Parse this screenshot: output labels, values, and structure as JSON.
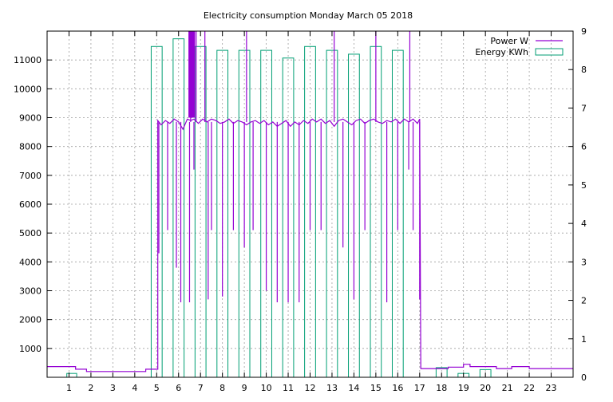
{
  "chart_data": {
    "type": "bar",
    "title": "Electricity consumption Monday March 05 2018",
    "grid": true,
    "legend_position": "top-right",
    "x_axis": {
      "range": [
        0,
        24
      ],
      "ticks": [
        1,
        2,
        3,
        4,
        5,
        6,
        7,
        8,
        9,
        10,
        11,
        12,
        13,
        14,
        15,
        16,
        17,
        18,
        19,
        20,
        21,
        22,
        23
      ]
    },
    "y_left": {
      "range": [
        0,
        12000
      ],
      "ticks": [
        1000,
        2000,
        3000,
        4000,
        5000,
        6000,
        7000,
        8000,
        9000,
        10000,
        11000
      ]
    },
    "y_right": {
      "range": [
        0,
        9
      ],
      "ticks": [
        0,
        1,
        2,
        3,
        4,
        5,
        6,
        7,
        8,
        9
      ]
    },
    "series": [
      {
        "name": "Energy KWh",
        "type": "bar",
        "axis": "right",
        "color": "#009e73",
        "bars": [
          {
            "x": 0.9,
            "w": 0.45,
            "v": 0.1
          },
          {
            "x": 4.75,
            "w": 0.5,
            "v": 8.6
          },
          {
            "x": 5.75,
            "w": 0.5,
            "v": 8.8
          },
          {
            "x": 6.75,
            "w": 0.5,
            "v": 8.6
          },
          {
            "x": 7.75,
            "w": 0.5,
            "v": 8.5
          },
          {
            "x": 8.75,
            "w": 0.5,
            "v": 8.5
          },
          {
            "x": 9.75,
            "w": 0.5,
            "v": 8.5
          },
          {
            "x": 10.75,
            "w": 0.5,
            "v": 8.3
          },
          {
            "x": 11.75,
            "w": 0.5,
            "v": 8.6
          },
          {
            "x": 12.75,
            "w": 0.5,
            "v": 8.5
          },
          {
            "x": 13.75,
            "w": 0.5,
            "v": 8.4
          },
          {
            "x": 14.75,
            "w": 0.5,
            "v": 8.6
          },
          {
            "x": 15.75,
            "w": 0.5,
            "v": 8.5
          },
          {
            "x": 17.75,
            "w": 0.5,
            "v": 0.25
          },
          {
            "x": 18.75,
            "w": 0.5,
            "v": 0.1
          },
          {
            "x": 19.75,
            "w": 0.5,
            "v": 0.2
          }
        ]
      },
      {
        "name": "Power W",
        "type": "line",
        "axis": "left",
        "color": "#9400d3",
        "points": [
          [
            0,
            370
          ],
          [
            1.3,
            370
          ],
          [
            1.3,
            280
          ],
          [
            1.8,
            280
          ],
          [
            1.8,
            200
          ],
          [
            4.5,
            200
          ],
          [
            4.5,
            280
          ],
          [
            5.05,
            280
          ],
          [
            5.05,
            8900
          ],
          [
            5.2,
            8750
          ],
          [
            5.4,
            8900
          ],
          [
            5.6,
            8800
          ],
          [
            5.8,
            8950
          ],
          [
            6.0,
            8850
          ],
          [
            6.2,
            8600
          ],
          [
            6.4,
            8950
          ],
          [
            6.55,
            8900
          ],
          [
            6.7,
            8950
          ],
          [
            6.9,
            8800
          ],
          [
            7.1,
            8950
          ],
          [
            7.3,
            8850
          ],
          [
            7.5,
            8950
          ],
          [
            7.7,
            8900
          ],
          [
            7.9,
            8800
          ],
          [
            8.1,
            8850
          ],
          [
            8.3,
            8950
          ],
          [
            8.5,
            8800
          ],
          [
            8.7,
            8900
          ],
          [
            8.9,
            8850
          ],
          [
            9.1,
            8750
          ],
          [
            9.3,
            8850
          ],
          [
            9.5,
            8900
          ],
          [
            9.7,
            8800
          ],
          [
            9.9,
            8900
          ],
          [
            10.1,
            8750
          ],
          [
            10.3,
            8850
          ],
          [
            10.5,
            8700
          ],
          [
            10.7,
            8800
          ],
          [
            10.9,
            8900
          ],
          [
            11.1,
            8700
          ],
          [
            11.3,
            8850
          ],
          [
            11.5,
            8750
          ],
          [
            11.7,
            8900
          ],
          [
            11.9,
            8800
          ],
          [
            12.1,
            8950
          ],
          [
            12.3,
            8850
          ],
          [
            12.5,
            8950
          ],
          [
            12.7,
            8800
          ],
          [
            12.9,
            8900
          ],
          [
            13.1,
            8700
          ],
          [
            13.3,
            8900
          ],
          [
            13.5,
            8950
          ],
          [
            13.7,
            8850
          ],
          [
            13.9,
            8750
          ],
          [
            14.1,
            8900
          ],
          [
            14.3,
            8950
          ],
          [
            14.5,
            8800
          ],
          [
            14.7,
            8900
          ],
          [
            14.9,
            8950
          ],
          [
            15.1,
            8850
          ],
          [
            15.3,
            8800
          ],
          [
            15.5,
            8900
          ],
          [
            15.7,
            8850
          ],
          [
            15.9,
            8950
          ],
          [
            16.1,
            8800
          ],
          [
            16.3,
            8950
          ],
          [
            16.5,
            8850
          ],
          [
            16.7,
            8950
          ],
          [
            16.9,
            8800
          ],
          [
            17.0,
            8950
          ],
          [
            17.05,
            300
          ],
          [
            18.3,
            300
          ],
          [
            18.3,
            350
          ],
          [
            19.0,
            350
          ],
          [
            19.0,
            450
          ],
          [
            19.3,
            450
          ],
          [
            19.3,
            370
          ],
          [
            20.5,
            370
          ],
          [
            20.5,
            300
          ],
          [
            21.2,
            300
          ],
          [
            21.2,
            370
          ],
          [
            22.0,
            370
          ],
          [
            22.0,
            300
          ],
          [
            24,
            300
          ]
        ],
        "spikes": [
          [
            5.1,
            4300
          ],
          [
            5.5,
            5100
          ],
          [
            5.9,
            3800
          ],
          [
            6.1,
            2600
          ],
          [
            6.5,
            2600
          ],
          [
            6.55,
            12500
          ],
          [
            6.7,
            7200
          ],
          [
            6.8,
            12500
          ],
          [
            7.2,
            12500
          ],
          [
            7.35,
            2700
          ],
          [
            7.5,
            5100
          ],
          [
            8.0,
            2800
          ],
          [
            8.5,
            5100
          ],
          [
            9.0,
            4500
          ],
          [
            9.1,
            12500
          ],
          [
            9.4,
            5100
          ],
          [
            10.0,
            3000
          ],
          [
            10.5,
            2600
          ],
          [
            11.0,
            2600
          ],
          [
            11.5,
            2600
          ],
          [
            12.0,
            5100
          ],
          [
            12.5,
            5100
          ],
          [
            13.1,
            12500
          ],
          [
            13.5,
            4500
          ],
          [
            14.0,
            2700
          ],
          [
            14.5,
            5100
          ],
          [
            15.0,
            12500
          ],
          [
            15.5,
            2600
          ],
          [
            16.0,
            5100
          ],
          [
            16.5,
            7200
          ],
          [
            16.55,
            12500
          ],
          [
            16.7,
            5100
          ],
          [
            17.0,
            2700
          ]
        ],
        "dense_band": {
          "x0": 6.45,
          "x1": 6.75,
          "y0": 9000,
          "y1": 12000
        }
      }
    ]
  }
}
